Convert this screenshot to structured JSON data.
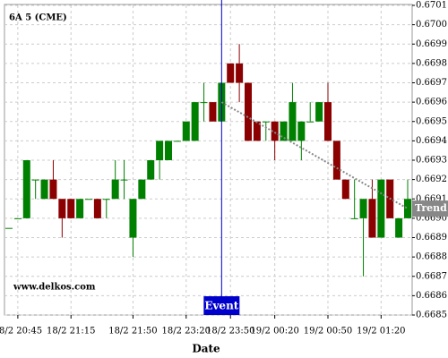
{
  "chart_data": {
    "type": "candlestick",
    "title": "6A 5 (CME)",
    "xlabel": "Date",
    "watermark": "www.delkos.com",
    "categories": [
      null,
      "18/2 20:45",
      null,
      null,
      null,
      null,
      null,
      "18/2 21:15",
      null,
      null,
      null,
      null,
      null,
      null,
      "18/2 21:50",
      null,
      null,
      null,
      null,
      null,
      "18/2 23:20",
      null,
      null,
      null,
      null,
      "18/2 23:50",
      null,
      null,
      null,
      null,
      "19/2 00:20",
      null,
      null,
      null,
      null,
      null,
      "19/2 00:50",
      null,
      null,
      null,
      null,
      null,
      "19/2 01:20",
      null,
      null,
      null
    ],
    "series": [
      {
        "up_color": "#008000",
        "down_color": "#8b0000",
        "open": [
          0.66895,
          0.669,
          0.669,
          0.6692,
          0.6691,
          0.6692,
          0.6691,
          0.6691,
          0.669,
          0.6691,
          0.6691,
          0.6691,
          0.6691,
          0.6692,
          0.6689,
          0.6691,
          0.6692,
          0.6693,
          0.6693,
          0.6694,
          0.6694,
          0.6694,
          0.6696,
          0.6696,
          0.6695,
          0.6698,
          0.6698,
          0.6697,
          0.6695,
          0.6695,
          0.6695,
          0.6694,
          0.6694,
          0.6694,
          0.6695,
          0.6695,
          0.6696,
          0.6694,
          0.6692,
          0.669,
          0.669,
          0.6691,
          0.6689,
          0.6692,
          0.6689,
          0.669
        ],
        "high": [
          0.66895,
          0.669,
          0.6693,
          0.6692,
          0.6692,
          0.6693,
          0.6691,
          0.6691,
          0.6691,
          0.6691,
          0.6691,
          0.6691,
          0.6693,
          0.6693,
          0.6691,
          0.6692,
          0.6693,
          0.6694,
          0.6694,
          0.6694,
          0.6695,
          0.6696,
          0.6697,
          0.6696,
          0.6697,
          0.6698,
          0.6699,
          0.6697,
          0.6695,
          0.6695,
          0.6695,
          0.6695,
          0.6697,
          0.6695,
          0.6696,
          0.6696,
          0.6697,
          0.6694,
          0.6692,
          0.6692,
          0.6691,
          0.6692,
          0.6692,
          0.6692,
          0.669,
          0.6692
        ],
        "low": [
          0.66895,
          0.669,
          0.669,
          0.6691,
          0.6691,
          0.6691,
          0.6689,
          0.669,
          0.669,
          0.6691,
          0.669,
          0.669,
          0.6691,
          0.6691,
          0.6688,
          0.6691,
          0.6692,
          0.6692,
          0.6693,
          0.6694,
          0.6694,
          0.6694,
          0.6695,
          0.6695,
          0.6695,
          0.6697,
          0.6696,
          0.6694,
          0.6694,
          0.6694,
          0.6693,
          0.6694,
          0.6694,
          0.6693,
          0.6695,
          0.6695,
          0.6694,
          0.6692,
          0.6691,
          0.669,
          0.6687,
          0.6689,
          0.6689,
          0.669,
          0.6689,
          0.669
        ],
        "close": [
          0.66895,
          0.669,
          0.6693,
          0.6692,
          0.6692,
          0.6691,
          0.669,
          0.669,
          0.6691,
          0.6691,
          0.669,
          0.6691,
          0.6692,
          0.6692,
          0.6691,
          0.6692,
          0.6693,
          0.6694,
          0.6694,
          0.6694,
          0.6695,
          0.6696,
          0.6696,
          0.6695,
          0.6697,
          0.6697,
          0.6697,
          0.6694,
          0.6694,
          0.6695,
          0.6694,
          0.6695,
          0.6696,
          0.6695,
          0.6695,
          0.6696,
          0.6694,
          0.6692,
          0.6691,
          0.669,
          0.6691,
          0.6689,
          0.6692,
          0.669,
          0.669,
          0.6691
        ]
      }
    ],
    "trend": {
      "label": "Trend",
      "x": [
        24,
        45
      ],
      "values": [
        0.6696,
        0.66905
      ],
      "color": "#888888"
    },
    "event": {
      "label": "Event",
      "index": 24,
      "color": "#0000cc"
    },
    "ylim": [
      0.6685,
      0.6701
    ],
    "yticks": [
      0.6685,
      0.6686,
      0.6687,
      0.6688,
      0.6689,
      {
        "value": 0.669,
        "label": "0.6690"
      },
      0.6691,
      0.6692,
      0.6693,
      0.6694,
      0.6695,
      0.6696,
      0.6697,
      0.6698,
      0.6699,
      {
        "value": 0.67,
        "label": "0.6700"
      },
      0.6701
    ],
    "grid": true
  }
}
